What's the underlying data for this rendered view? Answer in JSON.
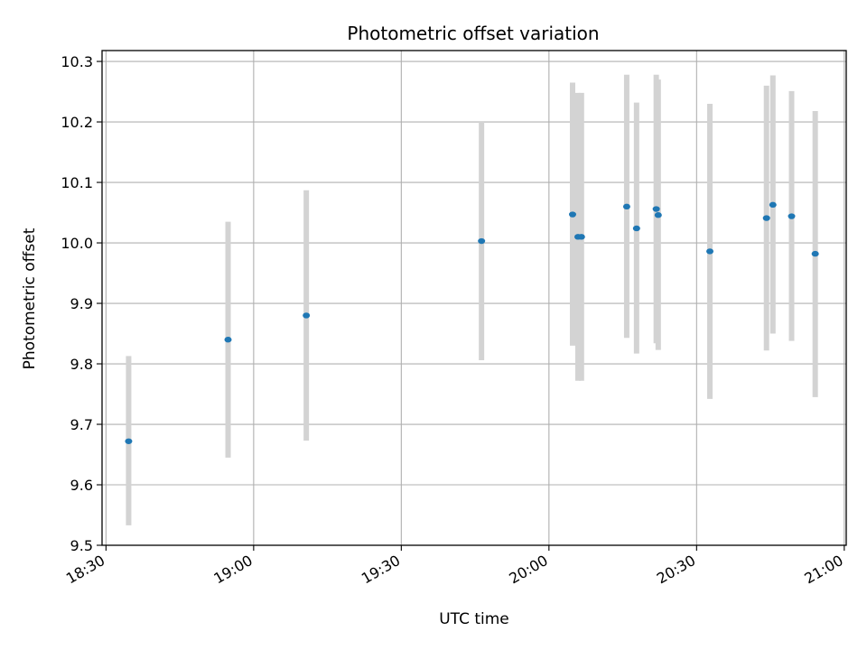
{
  "chart_data": {
    "type": "scatter",
    "title": "Photometric offset variation",
    "xlabel": "UTC time",
    "ylabel": "Photometric offset",
    "x_ticks": [
      "18:30",
      "19:00",
      "19:30",
      "20:00",
      "20:30",
      "21:00"
    ],
    "y_ticks": [
      "9.5",
      "9.6",
      "9.7",
      "9.8",
      "9.9",
      "10.0",
      "10.1",
      "10.2",
      "10.3"
    ],
    "xlim": [
      "18:29:12",
      "21:00:24"
    ],
    "ylim": [
      9.5,
      10.318
    ],
    "grid": true,
    "marker_color": "#1f77b4",
    "errorbar_color": "#d3d3d3",
    "points": [
      {
        "x": "18:34:36",
        "y": 9.672,
        "ymin": 9.533,
        "ymax": 9.813
      },
      {
        "x": "18:54:48",
        "y": 9.84,
        "ymin": 9.645,
        "ymax": 10.035
      },
      {
        "x": "19:10:42",
        "y": 9.88,
        "ymin": 9.673,
        "ymax": 10.087
      },
      {
        "x": "19:46:18",
        "y": 10.003,
        "ymin": 9.806,
        "ymax": 10.2
      },
      {
        "x": "20:04:48",
        "y": 10.047,
        "ymin": 9.83,
        "ymax": 10.265
      },
      {
        "x": "20:05:54",
        "y": 10.01,
        "ymin": 9.772,
        "ymax": 10.248
      },
      {
        "x": "20:06:36",
        "y": 10.01,
        "ymin": 9.772,
        "ymax": 10.248
      },
      {
        "x": "20:15:48",
        "y": 10.06,
        "ymin": 9.843,
        "ymax": 10.278
      },
      {
        "x": "20:17:48",
        "y": 10.024,
        "ymin": 9.817,
        "ymax": 10.232
      },
      {
        "x": "20:21:48",
        "y": 10.056,
        "ymin": 9.834,
        "ymax": 10.278
      },
      {
        "x": "20:22:12",
        "y": 10.046,
        "ymin": 9.823,
        "ymax": 10.27
      },
      {
        "x": "20:32:42",
        "y": 9.986,
        "ymin": 9.742,
        "ymax": 10.23
      },
      {
        "x": "20:44:12",
        "y": 10.041,
        "ymin": 9.822,
        "ymax": 10.26
      },
      {
        "x": "20:45:30",
        "y": 10.063,
        "ymin": 9.85,
        "ymax": 10.277
      },
      {
        "x": "20:49:18",
        "y": 10.044,
        "ymin": 9.838,
        "ymax": 10.251
      },
      {
        "x": "20:54:06",
        "y": 9.982,
        "ymin": 9.745,
        "ymax": 10.218
      }
    ]
  }
}
